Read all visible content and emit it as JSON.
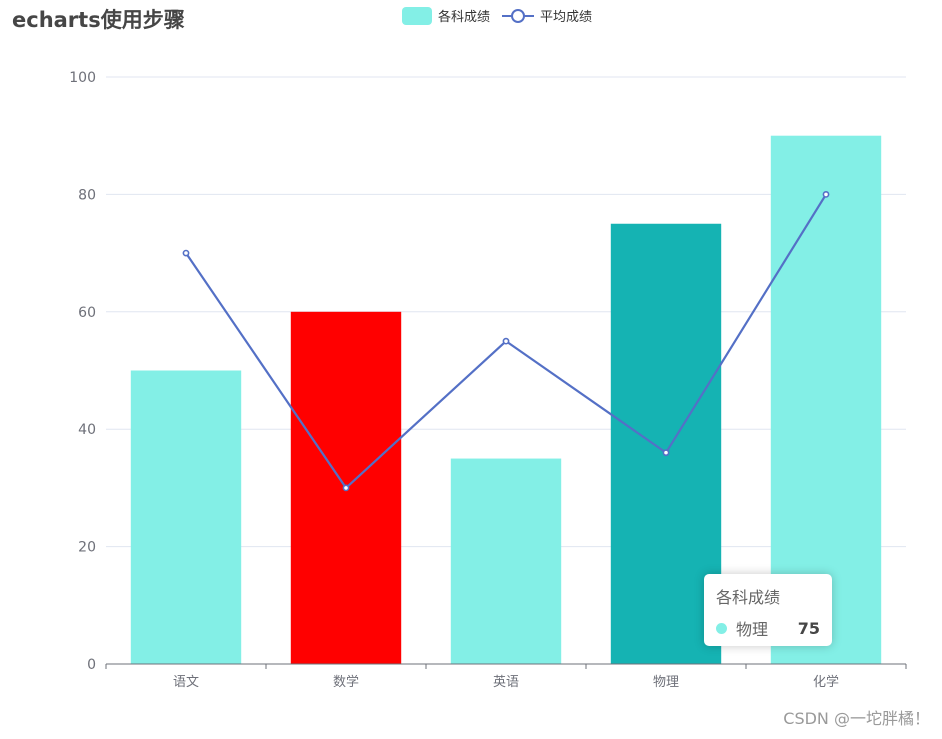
{
  "title": "echarts使用步骤",
  "chart_data": {
    "type": "bar",
    "categories": [
      "语文",
      "数学",
      "英语",
      "物理",
      "化学"
    ],
    "series": [
      {
        "name": "各科成绩",
        "type": "bar",
        "values": [
          50,
          60,
          35,
          75,
          90
        ],
        "color": "#83EFE6",
        "item_colors": [
          "#83EFE6",
          "#FF0000",
          "#83EFE6",
          "#15B3B3",
          "#83EFE6"
        ]
      },
      {
        "name": "平均成绩",
        "type": "line",
        "values": [
          70,
          30,
          55,
          36,
          80
        ],
        "color": "#5470C6"
      }
    ],
    "ylim": [
      0,
      100
    ],
    "yticks": [
      "0",
      "20",
      "40",
      "60",
      "80",
      "100"
    ],
    "grid": true,
    "legend_position": "top-center"
  },
  "tooltip": {
    "title": "各科成绩",
    "label": "物理",
    "value": "75",
    "color": "#83EFE6"
  },
  "watermark": "CSDN @一坨胖橘！"
}
